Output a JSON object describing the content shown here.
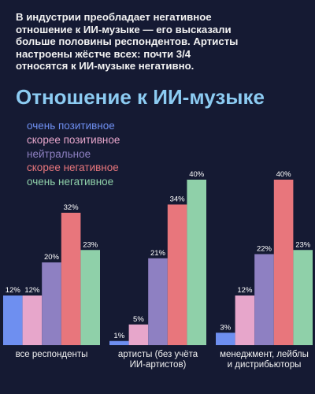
{
  "chart_data": {
    "type": "bar",
    "intro": "В индустрии преобладает негативное\nотношение к ИИ-музыке — его высказали\nбольше половины респондентов. Артисты\nнастроены жёстче всех: почти 3/4\nотносятся к ИИ-музыке негативно.",
    "title": "Отношение к ИИ-музыке",
    "categories": [
      "все респонденты",
      "артисты (без учёта\nИИ-артистов)",
      "менеджмент, лейблы\nи дистрибьюторы"
    ],
    "series": [
      {
        "name": "очень позитивное",
        "color": "#6e8ff0",
        "values": [
          12,
          1,
          3
        ],
        "value_labels": [
          "12%",
          "1%",
          "3%"
        ]
      },
      {
        "name": "скорее позитивное",
        "color": "#e7a6cb",
        "values": [
          12,
          5,
          12
        ],
        "value_labels": [
          "12%",
          "5%",
          "12%"
        ]
      },
      {
        "name": "нейтральное",
        "color": "#8e80c2",
        "values": [
          20,
          21,
          22
        ],
        "value_labels": [
          "20%",
          "21%",
          "22%"
        ]
      },
      {
        "name": "скорее негативное",
        "color": "#e8767c",
        "values": [
          32,
          34,
          40
        ],
        "value_labels": [
          "32%",
          "34%",
          "40%"
        ]
      },
      {
        "name": "очень негативное",
        "color": "#8fd0a9",
        "values": [
          23,
          40,
          23
        ],
        "value_labels": [
          "23%",
          "40%",
          "23%"
        ]
      }
    ]
  }
}
